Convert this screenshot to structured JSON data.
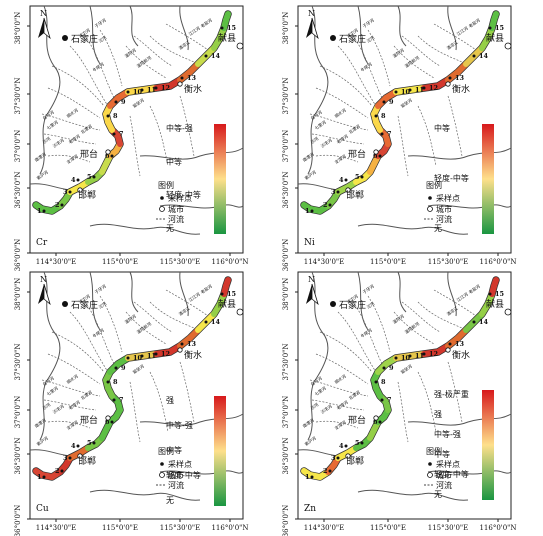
{
  "panels": [
    {
      "element": "Cr",
      "legend_bar": [
        {
          "label": "中等-强"
        },
        {
          "label": "中等"
        },
        {
          "label": "轻度-中等"
        },
        {
          "label": "无"
        }
      ],
      "bar_colors": [
        "#d7191c",
        "#fee08b",
        "#1a9641"
      ],
      "route_colors": [
        "#5cbf44",
        "#79c646",
        "#f6e64a",
        "#95cf47",
        "#c8dc4c",
        "#f5b142",
        "#d84534",
        "#fbd84a",
        "#e76a33",
        "#fbd84a",
        "#d2372c",
        "#e06b2f",
        "#c8dc4c",
        "#95cf47",
        "#5cbf44"
      ]
    },
    {
      "element": "Ni",
      "legend_bar": [
        {
          "label": "中等"
        },
        {
          "label": "轻度-中等"
        },
        {
          "label": "无"
        }
      ],
      "bar_colors": [
        "#d7191c",
        "#fee08b",
        "#1a9641"
      ],
      "route_colors": [
        "#5cbf44",
        "#79c646",
        "#9ed34a",
        "#f6e64a",
        "#f5b142",
        "#d84534",
        "#e76a33",
        "#fbd84a",
        "#e76a33",
        "#f6e64a",
        "#d2372c",
        "#e06b2f",
        "#e6c64c",
        "#95cf47",
        "#5cbf44"
      ]
    },
    {
      "element": "Cu",
      "legend_bar": [
        {
          "label": "强"
        },
        {
          "label": "中等-强"
        },
        {
          "label": "中等"
        },
        {
          "label": "轻度-中等"
        },
        {
          "label": "无"
        }
      ],
      "bar_colors": [
        "#d7191c",
        "#fee08b",
        "#1a9641"
      ],
      "route_colors": [
        "#d84534",
        "#d2372c",
        "#e06b2f",
        "#79c646",
        "#5cbf44",
        "#5cbf44",
        "#5cbf44",
        "#79c646",
        "#5cbf44",
        "#e6c64c",
        "#d2372c",
        "#e06b2f",
        "#f6e64a",
        "#95cf47",
        "#d2372c"
      ]
    },
    {
      "element": "Zn",
      "legend_bar": [
        {
          "label": "强-极严重"
        },
        {
          "label": "强"
        },
        {
          "label": "中等-强"
        },
        {
          "label": "中等"
        },
        {
          "label": "轻度-中等"
        },
        {
          "label": "无"
        }
      ],
      "bar_colors": [
        "#d7191c",
        "#fee08b",
        "#1a9641"
      ],
      "route_colors": [
        "#f6e64a",
        "#e76a33",
        "#f6e64a",
        "#5cbf44",
        "#95cf47",
        "#5cbf44",
        "#79c646",
        "#5cbf44",
        "#9ed34a",
        "#e6c64c",
        "#d2372c",
        "#e06b2f",
        "#79c646",
        "#95cf47",
        "#d2372c"
      ]
    }
  ],
  "cities": {
    "shijiazhuang": "石家庄",
    "xianxian": "献县",
    "hengshui": "衡水",
    "xingtai": "邢台",
    "handan": "邯郸"
  },
  "north_label": "N",
  "legend": {
    "title": "图例",
    "sampling_point": "采样点",
    "city": "城市",
    "river": "河流"
  },
  "lat_ticks": [
    "38°0'0\"N",
    "37°30'0\"N",
    "37°0'0\"N",
    "36°30'0\"N",
    "36°0'0\"N"
  ],
  "lon_ticks": [
    "114°30'0\"E",
    "115°0'0\"E",
    "115°30'0\"E",
    "116°0'0\"N"
  ],
  "river_names": [
    "子牙河",
    "沱河",
    "滏阳河",
    "滏阳新河",
    "牛尾河",
    "白马河",
    "七里河",
    "沙河",
    "南澧河",
    "顺水河",
    "留垒河",
    "滹沱河",
    "沙洺河",
    "北澧河",
    "支漳河",
    "索泸河",
    "老漳河",
    "清凉江",
    "江江河",
    "老盐河"
  ],
  "site_numbers": [
    "1",
    "2",
    "3",
    "4",
    "5",
    "6",
    "7",
    "8",
    "9",
    "10",
    "11",
    "12",
    "13",
    "14",
    "15"
  ]
}
